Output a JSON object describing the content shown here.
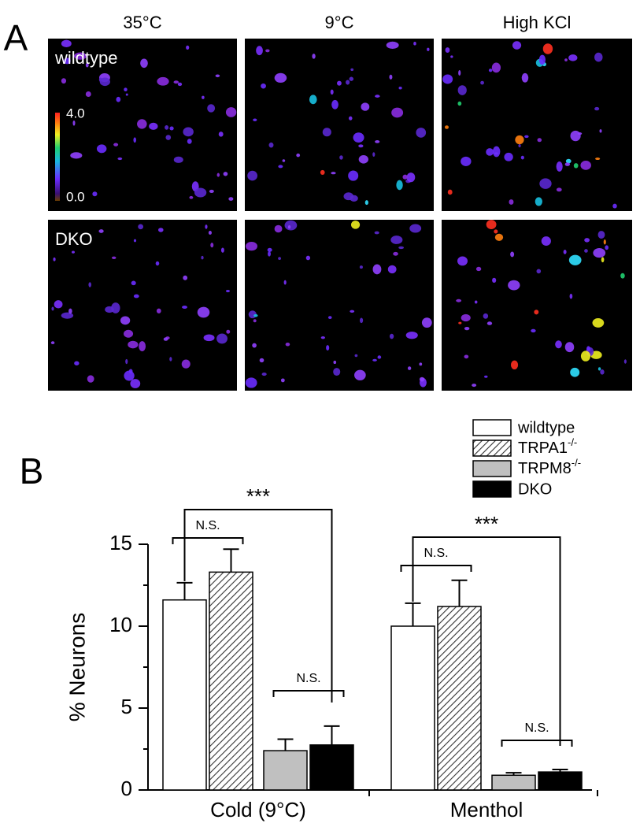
{
  "panel_a": {
    "label": "A",
    "columns": [
      "35°C",
      "9°C",
      "High KCl"
    ],
    "rows": [
      "wildtype",
      "DKO"
    ],
    "colorbar": {
      "max": "4.0",
      "min": "0.0"
    }
  },
  "chart_data": {
    "type": "bar",
    "panel_label": "B",
    "y_label": "% Neurons",
    "categories": [
      "Cold (9°C)",
      "Menthol"
    ],
    "series": [
      {
        "name": "wildtype",
        "color": "#ffffff",
        "values": [
          11.6,
          10.0
        ],
        "errors": [
          1.05,
          1.4
        ]
      },
      {
        "name": "TRPA1-/-",
        "color": "hatch",
        "values": [
          13.3,
          11.2
        ],
        "errors": [
          1.4,
          1.6
        ]
      },
      {
        "name": "TRPM8-/-",
        "color": "#c0c0c0",
        "values": [
          2.4,
          0.9
        ],
        "errors": [
          0.7,
          0.15
        ]
      },
      {
        "name": "DKO",
        "color": "#000000",
        "values": [
          2.75,
          1.1
        ],
        "errors": [
          1.15,
          0.15
        ]
      }
    ],
    "ylim": [
      0,
      15
    ],
    "yticks": [
      0,
      5,
      10,
      15
    ],
    "annotations": [
      "N.S.",
      "***",
      "N.S.",
      "N.S.",
      "***",
      "N.S."
    ]
  }
}
